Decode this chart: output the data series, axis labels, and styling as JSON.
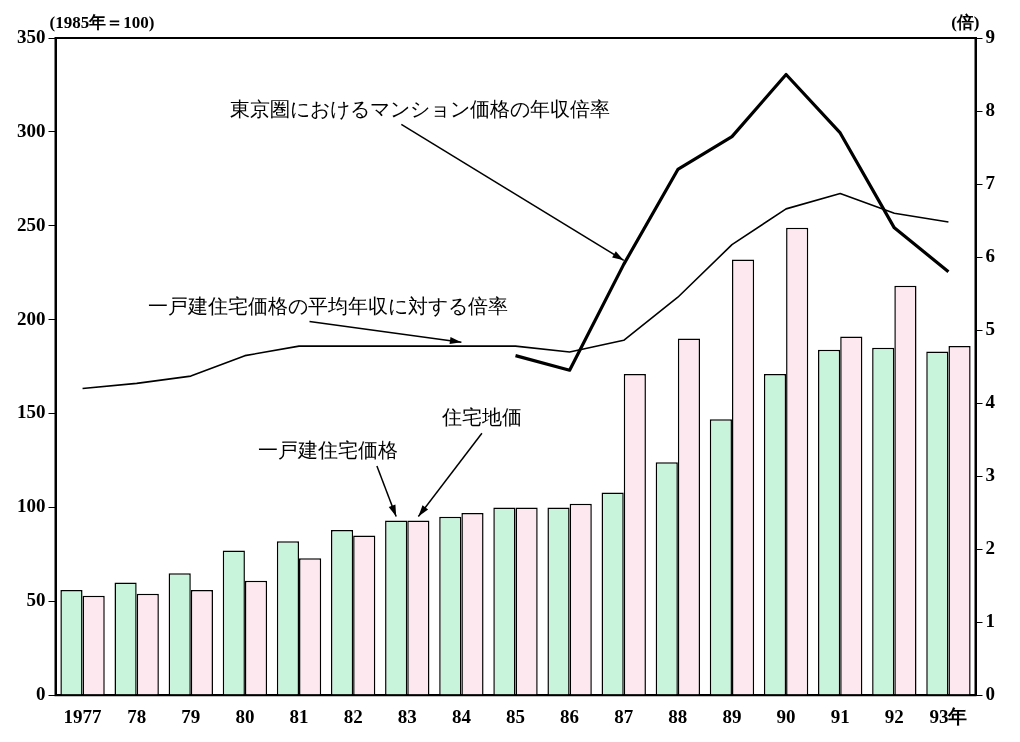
{
  "chart_data": {
    "type": "bar",
    "categories": [
      "1977",
      "78",
      "79",
      "80",
      "81",
      "82",
      "83",
      "84",
      "85",
      "86",
      "87",
      "88",
      "89",
      "90",
      "91",
      "92",
      "93年"
    ],
    "series": [
      {
        "name": "一戸建住宅価格",
        "color": "#c8f4dc",
        "values": [
          56,
          60,
          65,
          77,
          82,
          88,
          93,
          95,
          100,
          100,
          108,
          124,
          147,
          171,
          184,
          185,
          183
        ]
      },
      {
        "name": "住宅地価",
        "color": "#fce8ee",
        "values": [
          53,
          54,
          56,
          61,
          73,
          85,
          93,
          97,
          100,
          102,
          171,
          190,
          232,
          249,
          191,
          218,
          186
        ]
      },
      {
        "name": "一戸建住宅価格の平均年収に対する倍率",
        "type": "line",
        "axis": "y2",
        "color": "#000000",
        "values": [
          4.2,
          4.27,
          4.37,
          4.65,
          4.78,
          4.78,
          4.78,
          4.78,
          4.78,
          4.7,
          4.86,
          5.45,
          6.17,
          6.66,
          6.87,
          6.6,
          6.48
        ]
      },
      {
        "name": "東京圏におけるマンション価格の年収倍率",
        "type": "line",
        "axis": "y2",
        "color": "#000000",
        "values": [
          null,
          null,
          null,
          null,
          null,
          null,
          null,
          null,
          4.65,
          4.45,
          5.9,
          7.2,
          7.65,
          8.5,
          7.7,
          6.4,
          5.8
        ]
      }
    ],
    "ylim": [
      0,
      350
    ],
    "yticks": [
      0,
      50,
      100,
      150,
      200,
      250,
      300,
      350
    ],
    "y2lim": [
      0,
      9
    ],
    "y2ticks": [
      0,
      1,
      2,
      3,
      4,
      5,
      6,
      7,
      8,
      9
    ],
    "ylabel": "(1985年＝100)",
    "y2label": "(倍)",
    "marker": "none",
    "legend": false
  }
}
